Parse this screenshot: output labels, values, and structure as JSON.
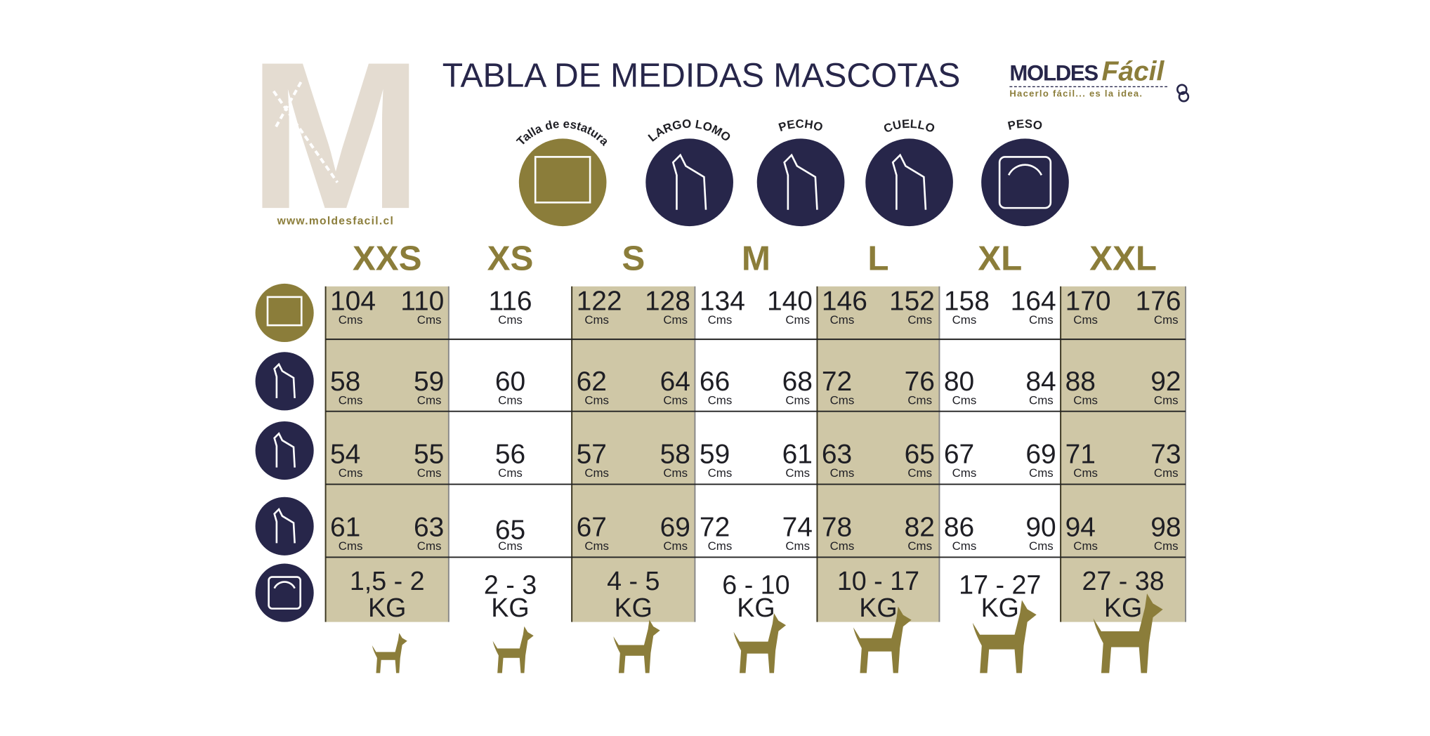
{
  "logo": {
    "letter": "M",
    "website": "www.moldesfacil.cl",
    "brand": "MOLDES",
    "brand_accent": "Fácil",
    "tagline": "Hacerlo fácil... es la idea."
  },
  "header": {
    "title": "TABLA DE MEDIDAS MASCOTAS"
  },
  "icons": [
    "Talla de estatura",
    "LARGO LOMO",
    "PECHO",
    "CUELLO",
    "PESO"
  ],
  "table": {
    "unit": "Cms",
    "sizes": [
      "XXS",
      "XS",
      "S",
      "M",
      "L",
      "XL",
      "XXL"
    ],
    "rows": [
      [
        [
          104,
          110
        ],
        [
          116
        ],
        [
          122,
          128
        ],
        [
          134,
          140
        ],
        [
          146,
          152
        ],
        [
          158,
          164
        ],
        [
          170,
          176
        ]
      ],
      [
        [
          58,
          59
        ],
        [
          60
        ],
        [
          62,
          64
        ],
        [
          66,
          68
        ],
        [
          72,
          76
        ],
        [
          80,
          84
        ],
        [
          88,
          92
        ]
      ],
      [
        [
          54,
          55
        ],
        [
          56
        ],
        [
          57,
          58
        ],
        [
          59,
          61
        ],
        [
          63,
          65
        ],
        [
          67,
          69
        ],
        [
          71,
          73
        ]
      ],
      [
        [
          61,
          63
        ],
        [
          65
        ],
        [
          67,
          69
        ],
        [
          72,
          74
        ],
        [
          78,
          82
        ],
        [
          86,
          90
        ],
        [
          94,
          98
        ]
      ]
    ],
    "weight_unit": "KG",
    "weights": [
      "1,5 - 2",
      "2 - 3",
      "4 - 5",
      "6 - 10",
      "10 - 17",
      "17 - 27",
      "27 - 38"
    ]
  }
}
